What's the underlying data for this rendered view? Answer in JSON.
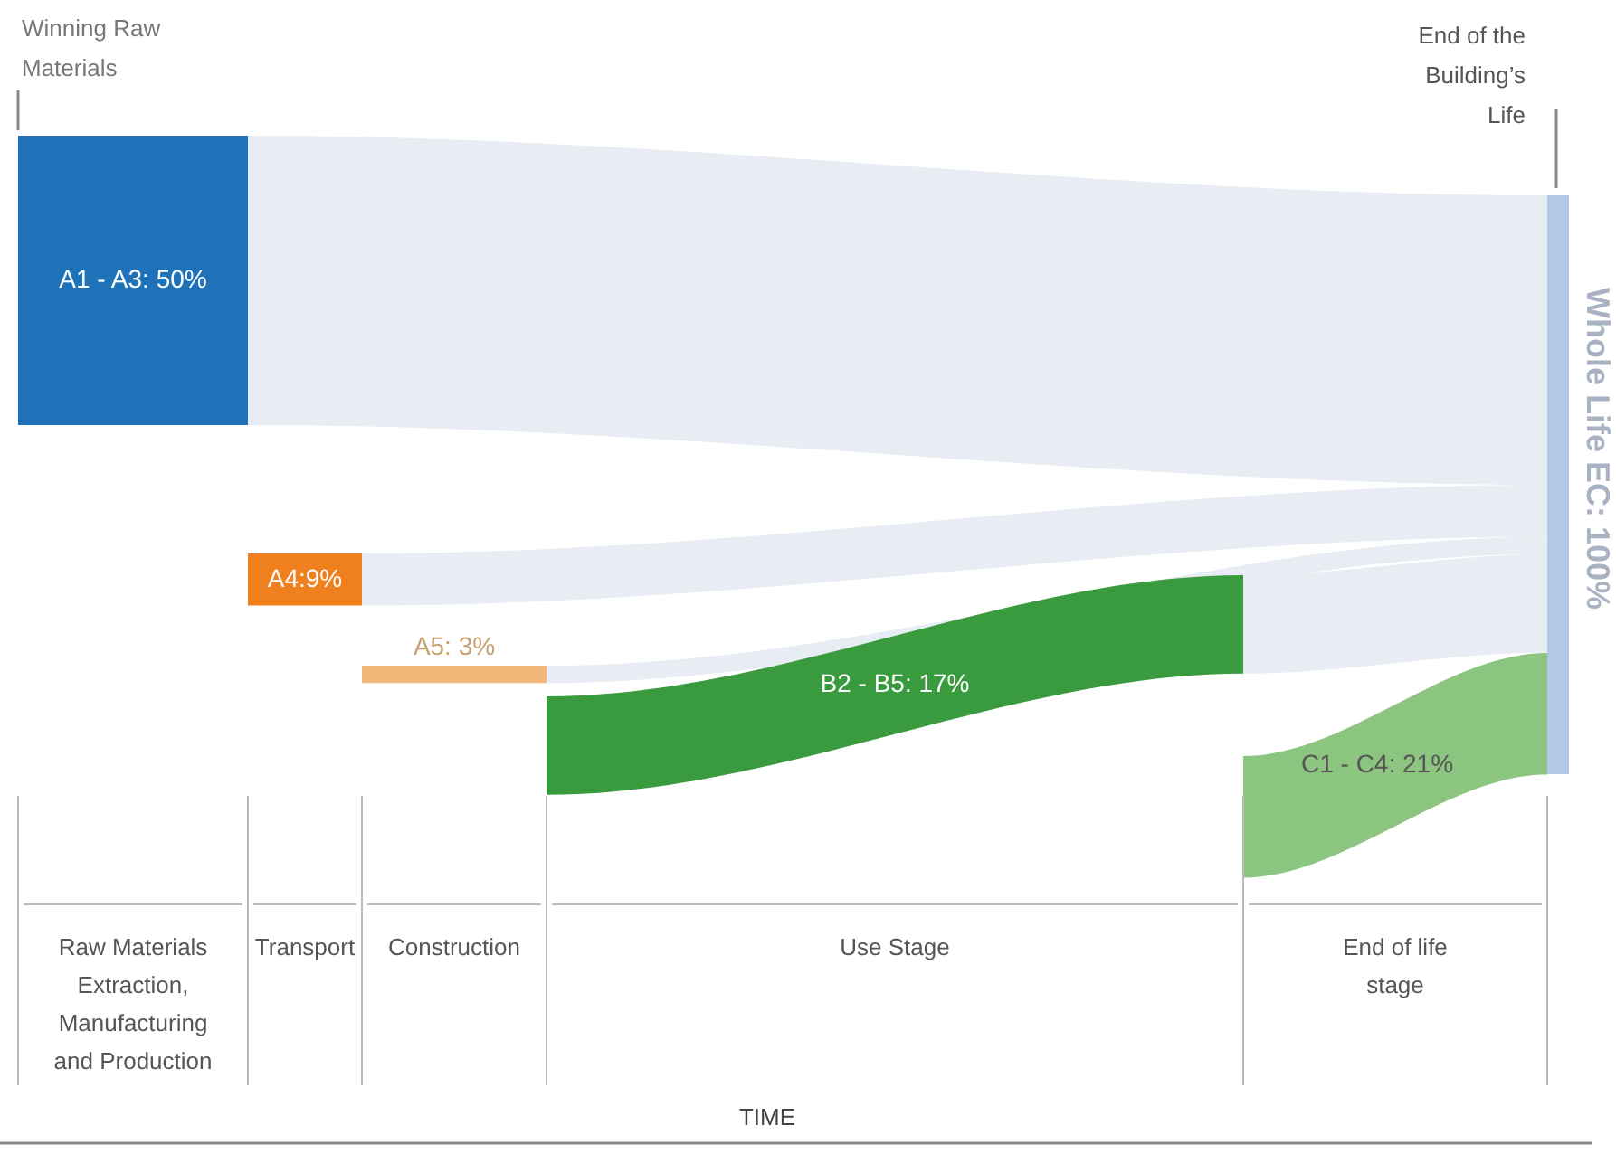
{
  "chart_data": {
    "type": "other",
    "categories": [
      "Raw Materials Extraction, Manufacturing and Production",
      "Transport",
      "Construction",
      "Use Stage",
      "End of life stage"
    ],
    "values": [
      50,
      9,
      3,
      17,
      21
    ],
    "value_labels": [
      "A1 - A3: 50%",
      "A4:9%",
      "A5: 3%",
      "B2 - B5: 17%",
      "C1 - C4: 21%"
    ],
    "colors": [
      "#1f72b8",
      "#f07f1e",
      "#f4b77a",
      "#3a9a3e",
      "#8cc57f"
    ],
    "annotations": [
      "Winning Raw Materials",
      "End of the Building’s Life",
      "Whole Life EC: 100%",
      "TIME"
    ]
  }
}
